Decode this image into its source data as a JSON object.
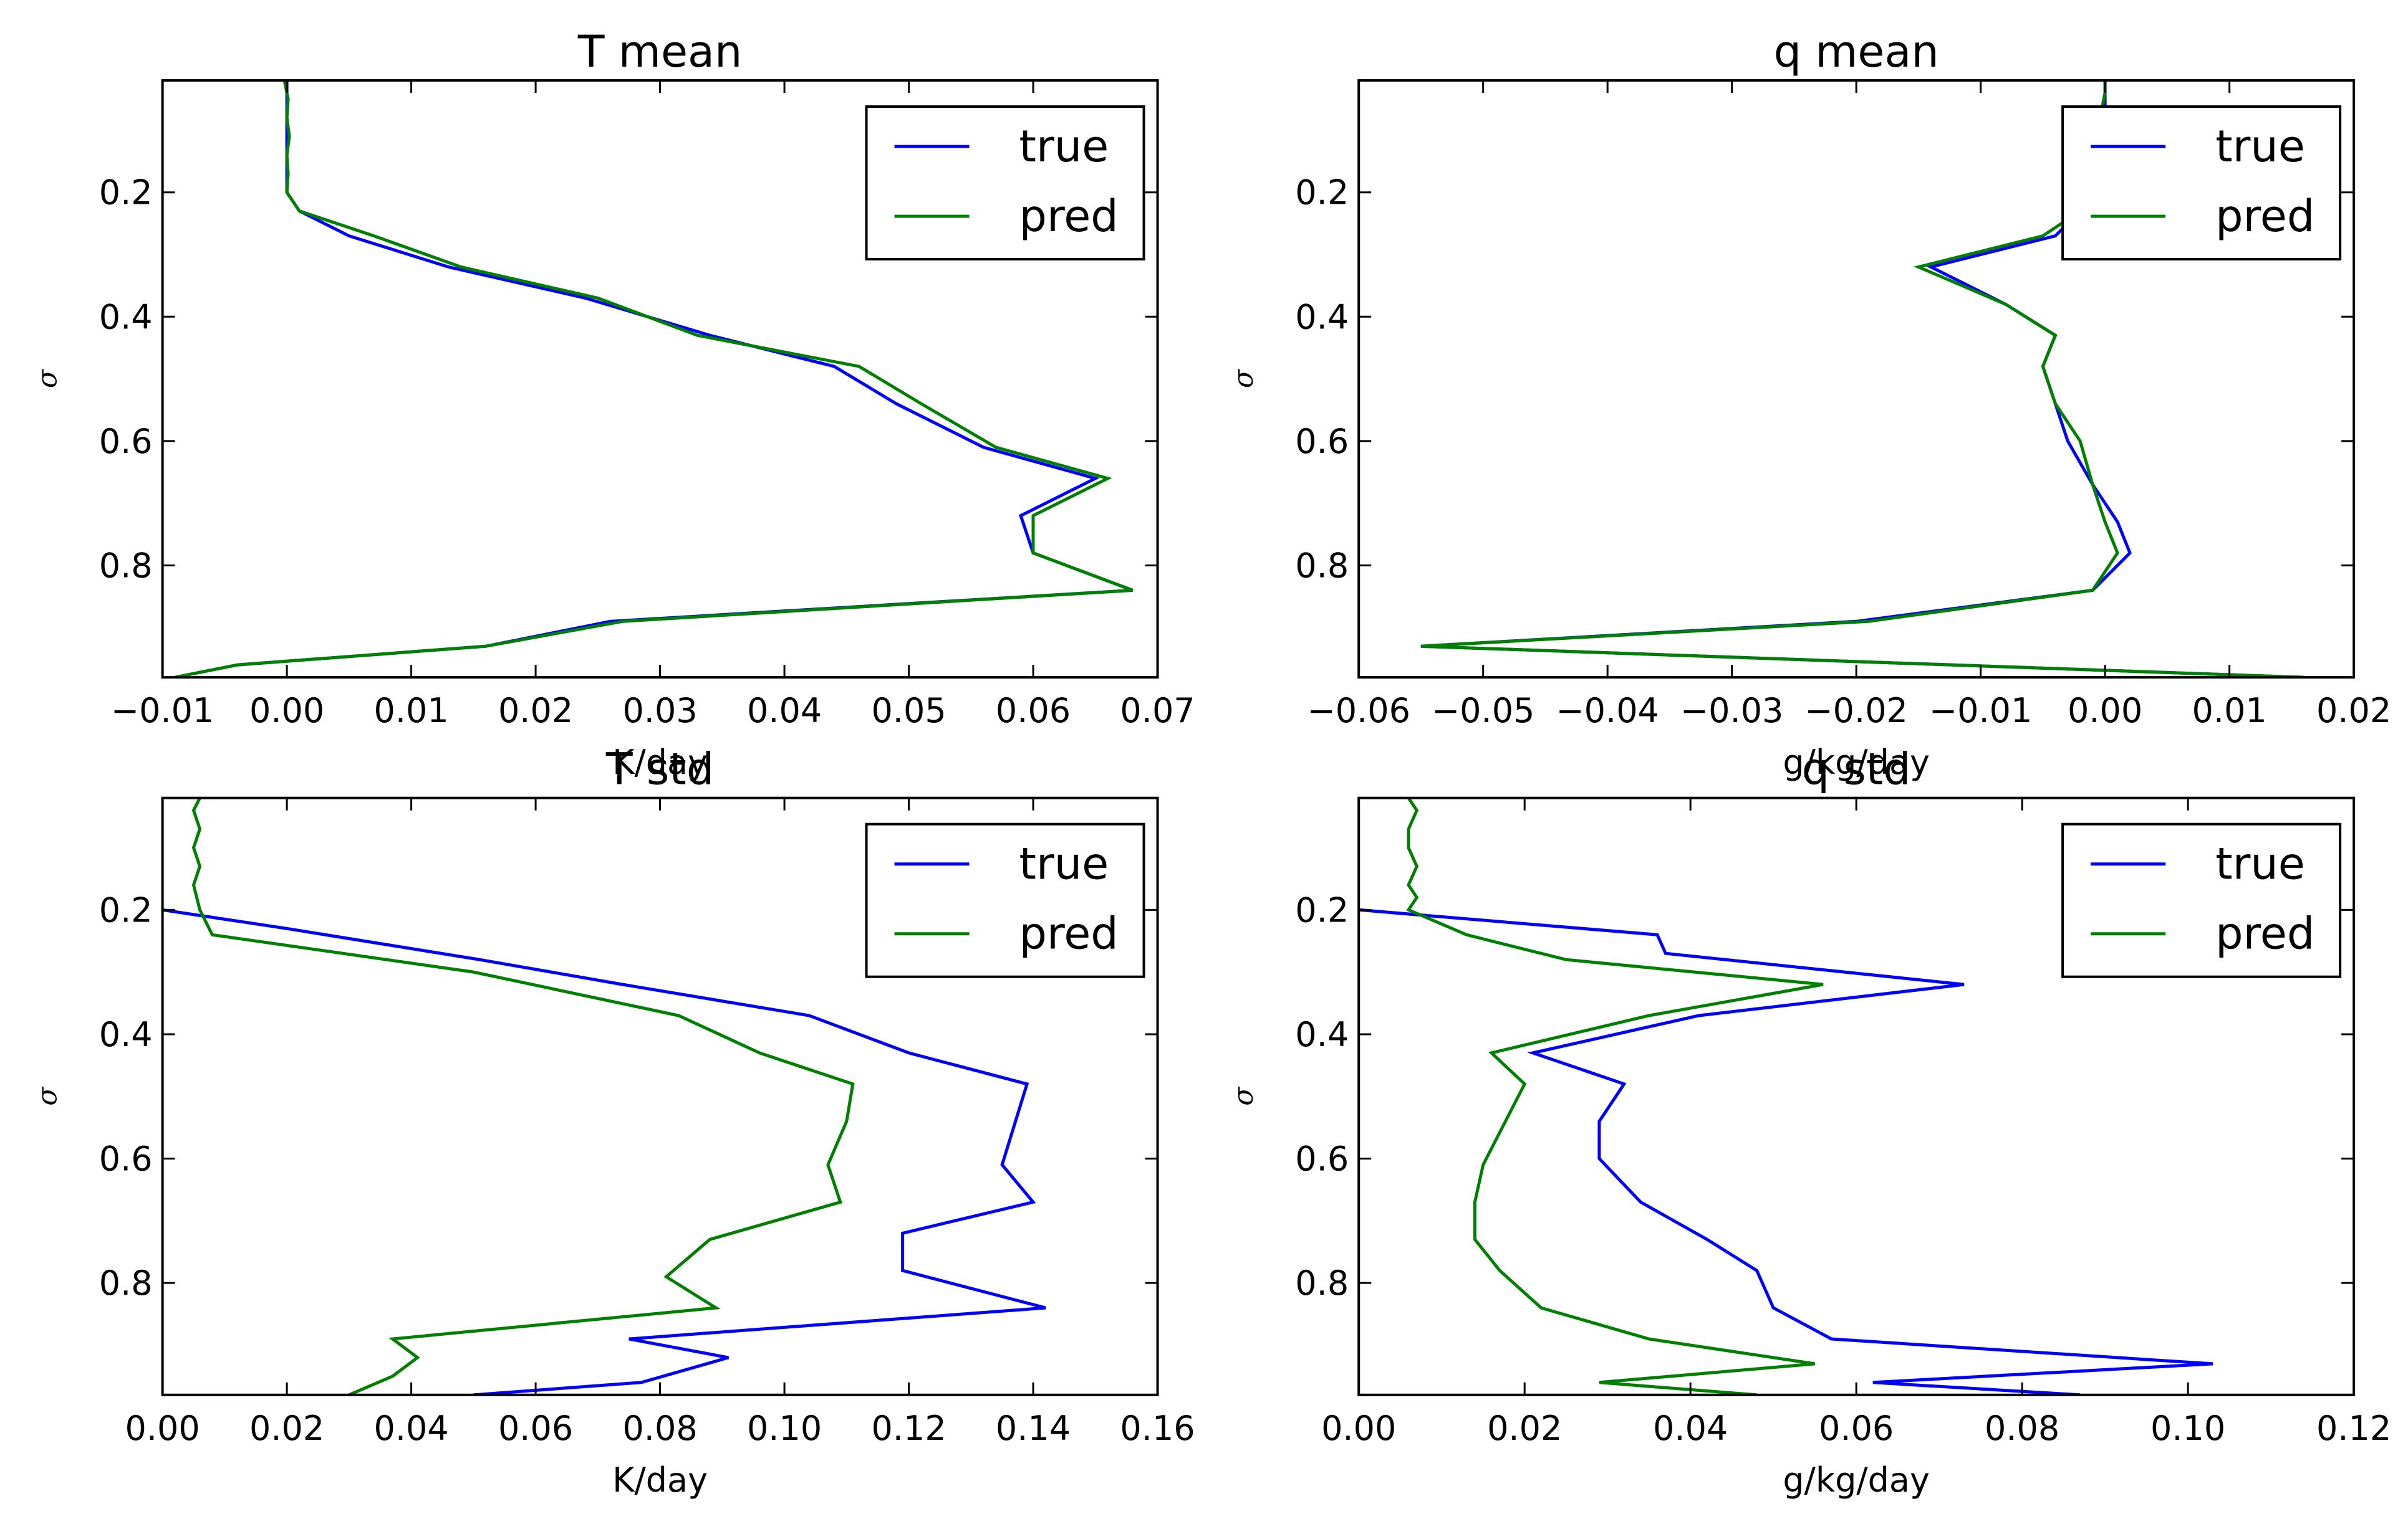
{
  "chart_data": [
    {
      "type": "line",
      "title": "T mean",
      "xlabel": "K/day",
      "ylabel": "σ",
      "xlim": [
        -0.01,
        0.07
      ],
      "ylim": [
        0.98,
        0.02
      ],
      "y_inverted": true,
      "xticks": [
        -0.01,
        0.0,
        0.01,
        0.02,
        0.03,
        0.04,
        0.05,
        0.06,
        0.07
      ],
      "xtick_labels": [
        "−0.01",
        "0.00",
        "0.01",
        "0.02",
        "0.03",
        "0.04",
        "0.05",
        "0.06",
        "0.07"
      ],
      "yticks": [
        0.2,
        0.4,
        0.6,
        0.8
      ],
      "ytick_labels": [
        "0.2",
        "0.4",
        "0.6",
        "0.8"
      ],
      "legend": "top-right",
      "grid": false,
      "series": [
        {
          "name": "true",
          "color": "#0000ff",
          "x": [
            0.0,
            0.0,
            0.0,
            0.0,
            0.0,
            0.0,
            0.0,
            0.001,
            0.005,
            0.013,
            0.024,
            0.034,
            0.044,
            0.049,
            0.056,
            0.065,
            0.059,
            0.06,
            0.068,
            0.026,
            0.016,
            -0.004,
            -0.009
          ],
          "y": [
            0.02,
            0.05,
            0.08,
            0.11,
            0.14,
            0.17,
            0.2,
            0.23,
            0.27,
            0.32,
            0.37,
            0.43,
            0.48,
            0.54,
            0.61,
            0.66,
            0.72,
            0.78,
            0.84,
            0.89,
            0.93,
            0.96,
            0.98
          ]
        },
        {
          "name": "pred",
          "color": "#008000",
          "x": [
            -0.0002,
            0.0001,
            0.0,
            0.0002,
            0.0,
            0.0001,
            0.0,
            0.001,
            0.007,
            0.014,
            0.025,
            0.033,
            0.046,
            0.051,
            0.057,
            0.066,
            0.06,
            0.06,
            0.068,
            0.027,
            0.016,
            -0.004,
            -0.009
          ],
          "y": [
            0.02,
            0.05,
            0.08,
            0.11,
            0.14,
            0.17,
            0.2,
            0.23,
            0.27,
            0.32,
            0.37,
            0.43,
            0.48,
            0.54,
            0.61,
            0.66,
            0.72,
            0.78,
            0.84,
            0.89,
            0.93,
            0.96,
            0.98
          ]
        }
      ]
    },
    {
      "type": "line",
      "title": "q mean",
      "xlabel": "g/kg/day",
      "ylabel": "σ",
      "xlim": [
        -0.06,
        0.02
      ],
      "ylim": [
        0.98,
        0.02
      ],
      "y_inverted": true,
      "xticks": [
        -0.06,
        -0.05,
        -0.04,
        -0.03,
        -0.02,
        -0.01,
        0.0,
        0.01,
        0.02
      ],
      "xtick_labels": [
        "−0.06",
        "−0.05",
        "−0.04",
        "−0.03",
        "−0.02",
        "−0.01",
        "0.00",
        "0.01",
        "0.02"
      ],
      "yticks": [
        0.2,
        0.4,
        0.6,
        0.8
      ],
      "ytick_labels": [
        "0.2",
        "0.4",
        "0.6",
        "0.8"
      ],
      "legend": "top-right",
      "grid": false,
      "series": [
        {
          "name": "true",
          "color": "#0000ff",
          "x": [
            0.0,
            0.0,
            0.0,
            0.0,
            0.0,
            0.0,
            -0.001,
            -0.002,
            -0.004,
            -0.014,
            -0.008,
            -0.004,
            -0.005,
            -0.004,
            -0.003,
            -0.001,
            0.001,
            0.002,
            -0.001,
            -0.02,
            -0.055,
            0.016
          ],
          "y": [
            0.02,
            0.04,
            0.07,
            0.1,
            0.13,
            0.16,
            0.2,
            0.23,
            0.27,
            0.32,
            0.38,
            0.43,
            0.48,
            0.54,
            0.6,
            0.67,
            0.73,
            0.78,
            0.84,
            0.89,
            0.93,
            0.98
          ]
        },
        {
          "name": "pred",
          "color": "#008000",
          "x": [
            0.0,
            0.0,
            -0.0003,
            0.0002,
            0.0,
            0.0,
            -0.001,
            -0.002,
            -0.005,
            -0.015,
            -0.008,
            -0.004,
            -0.005,
            -0.004,
            -0.002,
            -0.001,
            0.0,
            0.001,
            -0.001,
            -0.019,
            -0.055,
            0.016
          ],
          "y": [
            0.02,
            0.04,
            0.07,
            0.1,
            0.13,
            0.16,
            0.2,
            0.23,
            0.27,
            0.32,
            0.38,
            0.43,
            0.48,
            0.54,
            0.6,
            0.67,
            0.73,
            0.78,
            0.84,
            0.89,
            0.93,
            0.98
          ]
        }
      ]
    },
    {
      "type": "line",
      "title": "T std",
      "xlabel": "K/day",
      "ylabel": "σ",
      "xlim": [
        0.0,
        0.16
      ],
      "ylim": [
        0.98,
        0.02
      ],
      "y_inverted": true,
      "xticks": [
        0.0,
        0.02,
        0.04,
        0.06,
        0.08,
        0.1,
        0.12,
        0.14,
        0.16
      ],
      "xtick_labels": [
        "0.00",
        "0.02",
        "0.04",
        "0.06",
        "0.08",
        "0.10",
        "0.12",
        "0.14",
        "0.16"
      ],
      "yticks": [
        0.2,
        0.4,
        0.6,
        0.8
      ],
      "ytick_labels": [
        "0.2",
        "0.4",
        "0.6",
        "0.8"
      ],
      "legend": "top-right",
      "grid": false,
      "series": [
        {
          "name": "true",
          "color": "#0000ff",
          "x": [
            0.0,
            0.02,
            0.051,
            0.074,
            0.104,
            0.12,
            0.139,
            0.135,
            0.14,
            0.119,
            0.119,
            0.142,
            0.075,
            0.091,
            0.077,
            0.05
          ],
          "y": [
            0.2,
            0.23,
            0.28,
            0.32,
            0.37,
            0.43,
            0.48,
            0.61,
            0.67,
            0.72,
            0.78,
            0.84,
            0.89,
            0.92,
            0.96,
            0.98
          ]
        },
        {
          "name": "pred",
          "color": "#008000",
          "x": [
            0.006,
            0.005,
            0.006,
            0.005,
            0.006,
            0.005,
            0.006,
            0.008,
            0.05,
            0.083,
            0.096,
            0.111,
            0.11,
            0.107,
            0.109,
            0.088,
            0.081,
            0.089,
            0.037,
            0.041,
            0.037,
            0.03
          ],
          "y": [
            0.02,
            0.04,
            0.07,
            0.1,
            0.13,
            0.16,
            0.2,
            0.24,
            0.3,
            0.37,
            0.43,
            0.48,
            0.54,
            0.61,
            0.67,
            0.73,
            0.79,
            0.84,
            0.89,
            0.92,
            0.95,
            0.98
          ]
        }
      ]
    },
    {
      "type": "line",
      "title": "q std",
      "xlabel": "g/kg/day",
      "ylabel": "σ",
      "xlim": [
        0.0,
        0.12
      ],
      "ylim": [
        0.98,
        0.02
      ],
      "y_inverted": true,
      "xticks": [
        0.0,
        0.02,
        0.04,
        0.06,
        0.08,
        0.1,
        0.12
      ],
      "xtick_labels": [
        "0.00",
        "0.02",
        "0.04",
        "0.06",
        "0.08",
        "0.10",
        "0.12"
      ],
      "yticks": [
        0.2,
        0.4,
        0.6,
        0.8
      ],
      "ytick_labels": [
        "0.2",
        "0.4",
        "0.6",
        "0.8"
      ],
      "legend": "top-right",
      "grid": false,
      "series": [
        {
          "name": "true",
          "color": "#0000ff",
          "x": [
            0.0,
            0.036,
            0.037,
            0.073,
            0.041,
            0.021,
            0.032,
            0.029,
            0.029,
            0.034,
            0.042,
            0.048,
            0.05,
            0.057,
            0.103,
            0.062,
            0.087
          ],
          "y": [
            0.2,
            0.24,
            0.27,
            0.32,
            0.37,
            0.43,
            0.48,
            0.54,
            0.6,
            0.67,
            0.73,
            0.78,
            0.84,
            0.89,
            0.93,
            0.96,
            0.98
          ]
        },
        {
          "name": "pred",
          "color": "#008000",
          "x": [
            0.006,
            0.007,
            0.006,
            0.006,
            0.007,
            0.006,
            0.007,
            0.006,
            0.013,
            0.025,
            0.056,
            0.035,
            0.016,
            0.02,
            0.015,
            0.014,
            0.014,
            0.017,
            0.022,
            0.035,
            0.055,
            0.029,
            0.048
          ],
          "y": [
            0.02,
            0.04,
            0.07,
            0.1,
            0.13,
            0.16,
            0.18,
            0.2,
            0.24,
            0.28,
            0.32,
            0.37,
            0.43,
            0.48,
            0.61,
            0.67,
            0.73,
            0.78,
            0.84,
            0.89,
            0.93,
            0.96,
            0.98
          ]
        }
      ]
    }
  ]
}
